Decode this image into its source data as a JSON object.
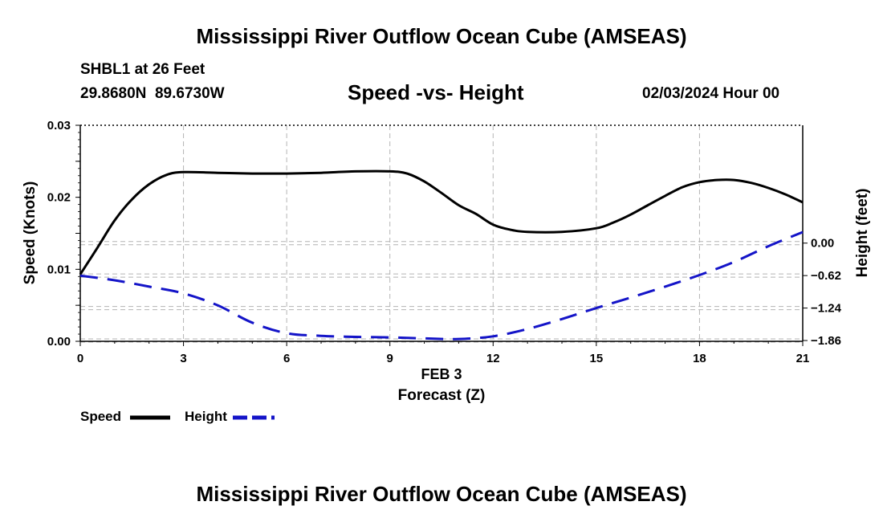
{
  "page": {
    "title_top": "Mississippi River Outflow Ocean Cube (AMSEAS)",
    "title_bottom": "Mississippi River Outflow Ocean Cube (AMSEAS)",
    "station_line": "SHBL1 at 26 Feet",
    "coords_line": "29.8680N  89.6730W",
    "datetime_line": "02/03/2024 Hour 00"
  },
  "chart_data": {
    "type": "line",
    "title": "Speed -vs- Height",
    "xlabel": "Forecast (Z)",
    "date_label": "FEB 3",
    "ylabel_left": "Speed (Knots)",
    "ylabel_right": "Height (feet)",
    "xlim": [
      0,
      21
    ],
    "ylim_left": [
      0,
      0.03
    ],
    "ylim_right": [
      -1.875,
      2.25
    ],
    "x_ticks": [
      0,
      3,
      6,
      9,
      12,
      15,
      18,
      21
    ],
    "x_tick_labels": [
      "0",
      "3",
      "6",
      "9",
      "12",
      "15",
      "18",
      "21"
    ],
    "y_left_ticks": [
      0,
      0.005,
      0.01,
      0.015,
      0.02,
      0.025,
      0.03
    ],
    "y_left_tick_labels": [
      "0.00",
      "",
      "0.01",
      "",
      "0.02",
      "",
      "0.03"
    ],
    "y_right_ticks": [
      -1.86,
      -1.24,
      -0.62,
      0.0
    ],
    "y_right_tick_labels": [
      "−1.86",
      "−1.24",
      "−0.62",
      "0.00"
    ],
    "grid": true,
    "series": [
      {
        "name": "Speed",
        "axis": "left",
        "color": "#000000",
        "dash": "solid",
        "x": [
          0,
          0.5,
          1,
          1.5,
          2,
          2.5,
          3,
          4,
          5,
          6,
          7,
          8,
          9,
          9.5,
          10,
          10.5,
          11,
          11.5,
          12,
          12.5,
          13,
          14,
          15,
          15.5,
          16,
          16.5,
          17,
          17.5,
          18,
          18.5,
          19,
          19.5,
          20,
          20.5,
          21
        ],
        "values": [
          0.0093,
          0.013,
          0.0168,
          0.0197,
          0.0218,
          0.0231,
          0.0235,
          0.0234,
          0.0233,
          0.0233,
          0.0234,
          0.0236,
          0.0236,
          0.0233,
          0.0222,
          0.0206,
          0.0189,
          0.0177,
          0.0162,
          0.0155,
          0.0152,
          0.0152,
          0.0157,
          0.0165,
          0.0176,
          0.0189,
          0.0202,
          0.0214,
          0.0221,
          0.0224,
          0.0224,
          0.022,
          0.0213,
          0.0204,
          0.0193
        ]
      },
      {
        "name": "Height",
        "axis": "right",
        "color": "#1414c8",
        "dash": "dashed",
        "x": [
          0,
          1,
          2,
          3,
          4,
          5,
          6,
          7,
          8,
          9,
          10,
          11,
          12,
          13,
          14,
          15,
          16,
          17,
          18,
          19,
          20,
          21
        ],
        "values": [
          -0.62,
          -0.71,
          -0.83,
          -0.96,
          -1.19,
          -1.52,
          -1.72,
          -1.77,
          -1.79,
          -1.8,
          -1.82,
          -1.83,
          -1.78,
          -1.64,
          -1.45,
          -1.24,
          -1.04,
          -0.83,
          -0.61,
          -0.36,
          -0.06,
          0.21
        ]
      }
    ],
    "legend": [
      {
        "label": "Speed",
        "color": "#000000",
        "dash": "solid"
      },
      {
        "label": "Height",
        "color": "#1414c8",
        "dash": "dashed"
      }
    ]
  }
}
